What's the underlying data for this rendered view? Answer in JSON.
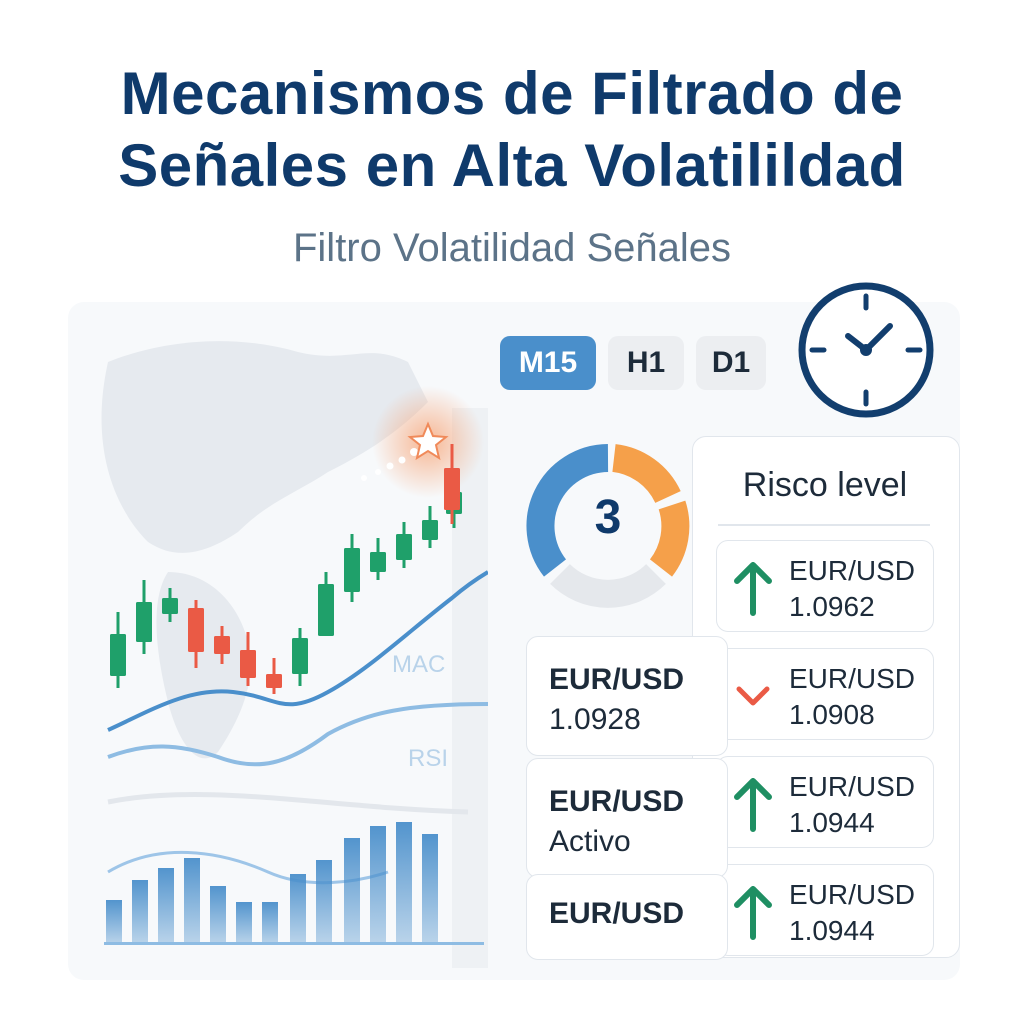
{
  "header": {
    "title_line1": "Mecanismos de Filtrado de",
    "title_line2": "Señales en Alta Volatilildad",
    "subtitle": "Filtro Volatilidad Señales"
  },
  "chart": {
    "indicator_mac": "MAC",
    "indicator_rsi": "RSI",
    "candles": [
      {
        "dir": "up"
      },
      {
        "dir": "up"
      },
      {
        "dir": "up"
      },
      {
        "dir": "down"
      },
      {
        "dir": "down"
      },
      {
        "dir": "down"
      },
      {
        "dir": "down"
      },
      {
        "dir": "up"
      },
      {
        "dir": "up"
      },
      {
        "dir": "up"
      },
      {
        "dir": "up"
      },
      {
        "dir": "up"
      },
      {
        "dir": "up"
      },
      {
        "dir": "up"
      },
      {
        "dir": "down"
      }
    ],
    "colors": {
      "up": "#1fa06a",
      "down": "#ea5a45",
      "line": "#4a8fcb",
      "bars": "#4a8fcb"
    }
  },
  "timeframes": {
    "m15": "M15",
    "h1": "H1",
    "d1": "D1",
    "active": "M15"
  },
  "gauge": {
    "value": "3",
    "colors": {
      "blue": "#4a8fcb",
      "orange": "#f5a04a",
      "grey": "#e5e8ec"
    }
  },
  "risk": {
    "title": "Risco level",
    "items": [
      {
        "pair": "EUR/USD",
        "value": "1.0962",
        "dir": "up",
        "icon": "arrow-up-icon"
      },
      {
        "pair": "EUR/USD",
        "value": "1.0908",
        "dir": "down",
        "icon": "chevron-down-icon"
      },
      {
        "pair": "EUR/USD",
        "value": "1.0944",
        "dir": "up",
        "icon": "arrow-up-icon"
      },
      {
        "pair": "EUR/USD",
        "value": "1.0944",
        "dir": "up",
        "icon": "arrow-up-icon"
      }
    ]
  },
  "signals": [
    {
      "pair": "EUR/USD",
      "value": "1.0928"
    },
    {
      "pair": "EUR/USD",
      "value": "Activo"
    },
    {
      "pair": "EUR/USD",
      "value": ""
    }
  ]
}
